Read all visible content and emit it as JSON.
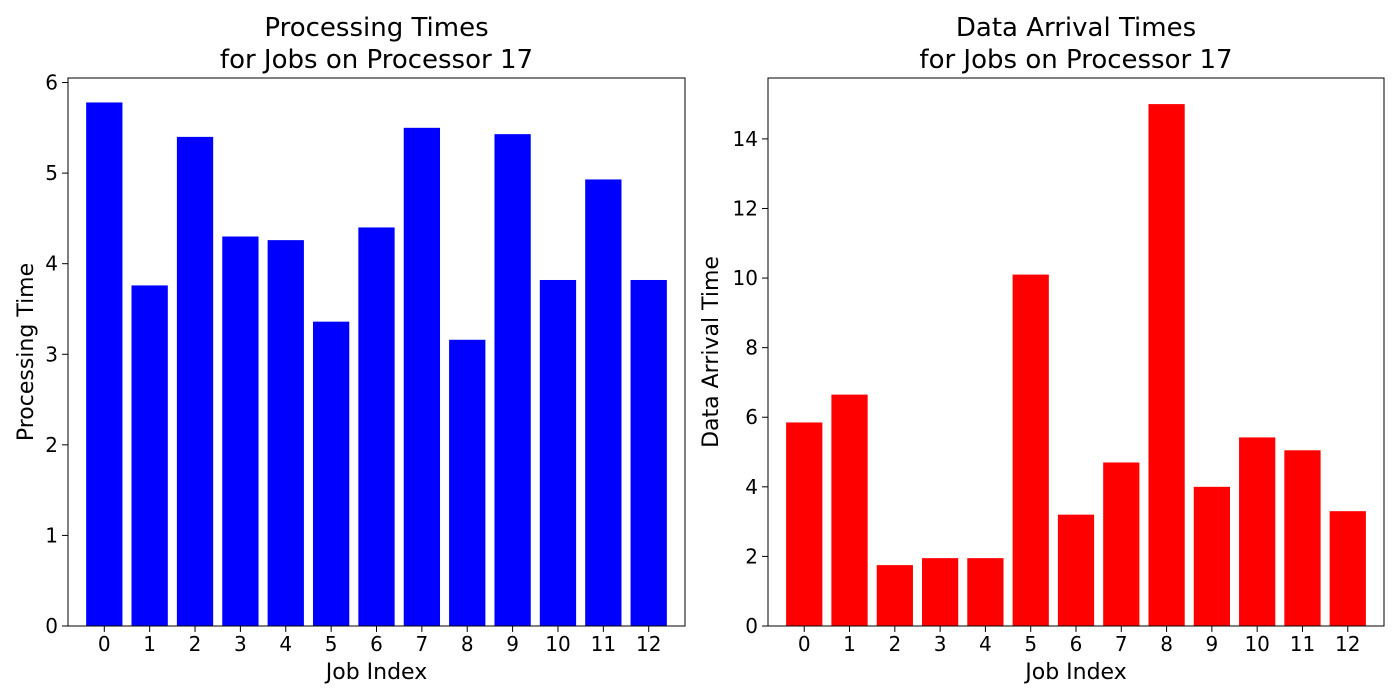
{
  "chart_data": [
    {
      "type": "bar",
      "title_line1": "Processing Times",
      "title_line2": "for Jobs on Processor 17",
      "xlabel": "Job Index",
      "ylabel": "Processing Time",
      "categories": [
        "0",
        "1",
        "2",
        "3",
        "4",
        "5",
        "6",
        "7",
        "8",
        "9",
        "10",
        "11",
        "12"
      ],
      "values": [
        5.78,
        3.76,
        5.4,
        4.3,
        4.26,
        3.36,
        4.4,
        5.5,
        3.16,
        5.43,
        3.82,
        4.93,
        3.82
      ],
      "ylim": [
        0,
        6.05
      ],
      "yticks": [
        0,
        1,
        2,
        3,
        4,
        5,
        6
      ],
      "bar_color": "#0000ff",
      "grid": false
    },
    {
      "type": "bar",
      "title_line1": "Data Arrival Times",
      "title_line2": "for Jobs on Processor 17",
      "xlabel": "Job Index",
      "ylabel": "Data Arrival Time",
      "categories": [
        "0",
        "1",
        "2",
        "3",
        "4",
        "5",
        "6",
        "7",
        "8",
        "9",
        "10",
        "11",
        "12"
      ],
      "values": [
        5.85,
        6.65,
        1.75,
        1.95,
        1.95,
        10.1,
        3.2,
        4.7,
        15.0,
        4.0,
        5.42,
        5.05,
        3.3
      ],
      "ylim": [
        0,
        15.75
      ],
      "yticks": [
        0,
        2,
        4,
        6,
        8,
        10,
        12,
        14
      ],
      "bar_color": "#ff0000",
      "grid": false
    }
  ]
}
